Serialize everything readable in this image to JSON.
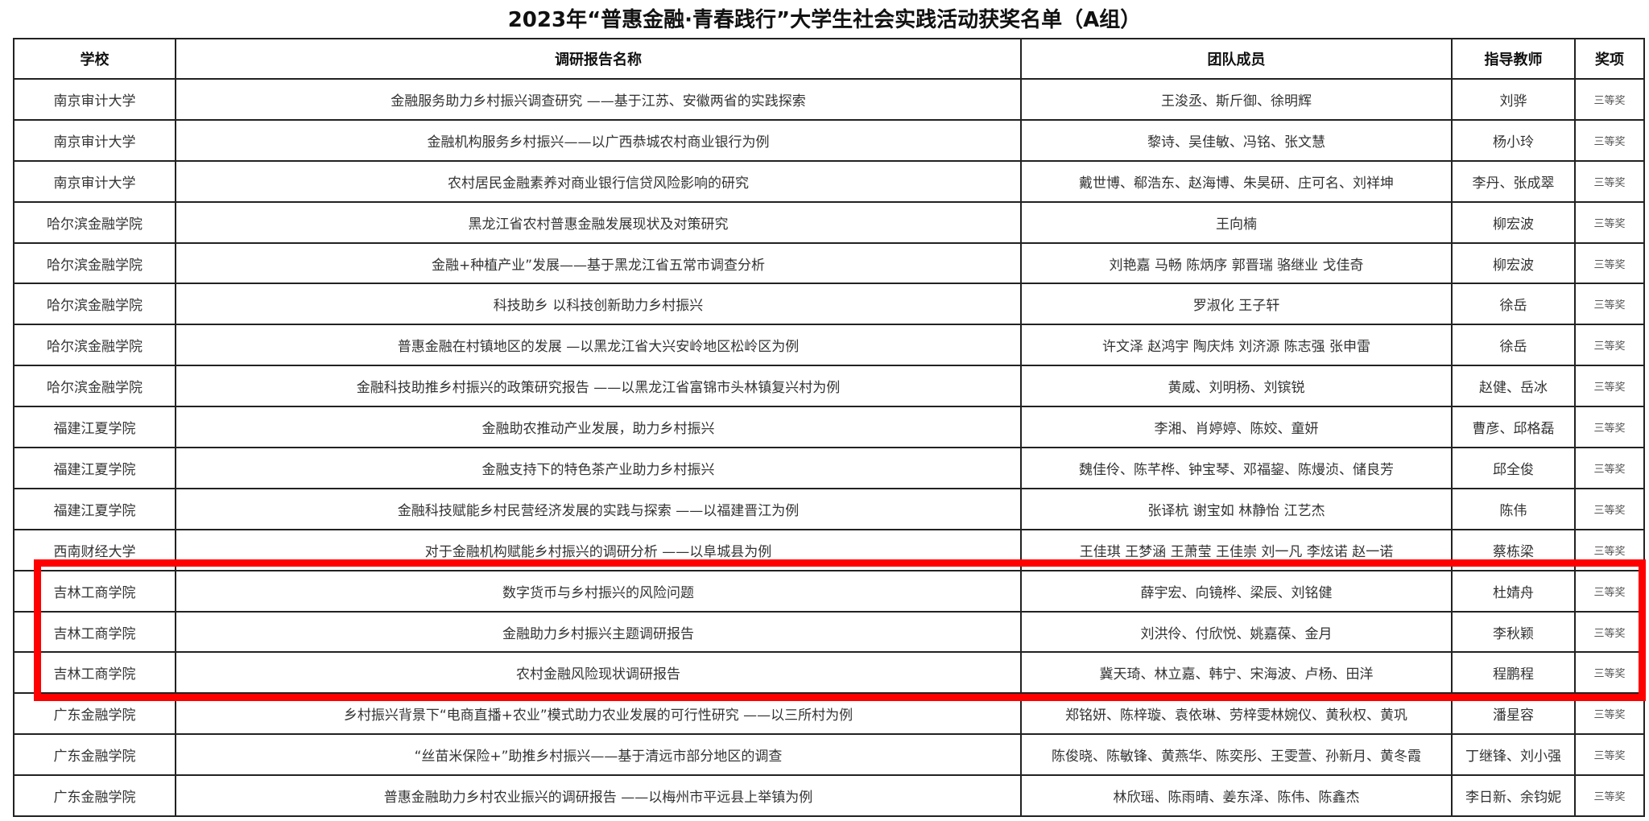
{
  "title": "2023年“普惠金融·青春践行”大学生社会实践活动获奖名单（A组）",
  "headers": [
    "学校",
    "调研报告名称",
    "团队成员",
    "指导教师",
    "奖项"
  ],
  "highlight_color": "#ff0000",
  "rows": [
    {
      "school": "南京审计大学",
      "report": "金融服务助力乡村振兴调查研究 ——基于江苏、安徽两省的实践探索",
      "members": "王浚丞、斯斤御、徐明辉",
      "advisor": "刘骅",
      "award": "三等奖"
    },
    {
      "school": "南京审计大学",
      "report": "金融机构服务乡村振兴——以广西恭城农村商业银行为例",
      "members": "黎诗、吴佳敏、冯铭、张文慧",
      "advisor": "杨小玲",
      "award": "三等奖"
    },
    {
      "school": "南京审计大学",
      "report": "农村居民金融素养对商业银行信贷风险影响的研究",
      "members": "戴世博、郗浩东、赵海博、朱昊研、庄可名、刘祥坤",
      "advisor": "李丹、张成翠",
      "award": "三等奖"
    },
    {
      "school": "哈尔滨金融学院",
      "report": "黑龙江省农村普惠金融发展现状及对策研究",
      "members": "王向楠",
      "advisor": "柳宏波",
      "award": "三等奖"
    },
    {
      "school": "哈尔滨金融学院",
      "report": "金融+种植产业”发展——基于黑龙江省五常市调查分析",
      "members": "刘艳嘉  马畅   陈炳序   郭晋瑞   骆继业  戈佳奇",
      "advisor": "柳宏波",
      "award": "三等奖"
    },
    {
      "school": "哈尔滨金融学院",
      "report": "科技助乡  以科技创新助力乡村振兴",
      "members": "罗淑化  王子轩",
      "advisor": "徐岳",
      "award": "三等奖"
    },
    {
      "school": "哈尔滨金融学院",
      "report": "普惠金融在村镇地区的发展 —以黑龙江省大兴安岭地区松岭区为例",
      "members": "许文泽  赵鸿宇  陶庆炜  刘济源  陈志强  张申雷",
      "advisor": "徐岳",
      "award": "三等奖"
    },
    {
      "school": "哈尔滨金融学院",
      "report": "金融科技助推乡村振兴的政策研究报告 ——以黑龙江省富锦市头林镇复兴村为例",
      "members": "黄威、刘明杨、刘镔锐",
      "advisor": "赵健、岳冰",
      "award": "三等奖"
    },
    {
      "school": "福建江夏学院",
      "report": "金融助农推动产业发展，助力乡村振兴",
      "members": "李湘、肖婷婷、陈姣、童妍",
      "advisor": "曹彦、邱格磊",
      "award": "三等奖"
    },
    {
      "school": "福建江夏学院",
      "report": "金融支持下的特色茶产业助力乡村振兴",
      "members": "魏佳伶、陈芊桦、钟宝琴、邓福鋆、陈熳浈、储良芳",
      "advisor": "邱全俊",
      "award": "三等奖"
    },
    {
      "school": "福建江夏学院",
      "report": "金融科技赋能乡村民营经济发展的实践与探索 ——以福建晋江为例",
      "members": "张译杭  谢宝如  林静怡  江艺杰",
      "advisor": "陈伟",
      "award": "三等奖"
    },
    {
      "school": "西南财经大学",
      "report": "对于金融机构赋能乡村振兴的调研分析 ——以阜城县为例",
      "members": "王佳琪  王梦涵  王萧莹  王佳崇  刘一凡  李炫诺  赵一诺",
      "advisor": "蔡栋梁",
      "award": "三等奖"
    },
    {
      "school": "吉林工商学院",
      "report": "数字货币与乡村振兴的风险问题",
      "members": "薛宇宏、向镜桦、梁辰、刘铭健",
      "advisor": "杜婧舟",
      "award": "三等奖"
    },
    {
      "school": "吉林工商学院",
      "report": "金融助力乡村振兴主题调研报告",
      "members": "刘洪伶、付欣悦、姚嘉葆、金月",
      "advisor": "李秋颖",
      "award": "三等奖"
    },
    {
      "school": "吉林工商学院",
      "report": "农村金融风险现状调研报告",
      "members": "冀天琦、林立嘉、韩宁、宋海波、卢杨、田洋",
      "advisor": "程鹏程",
      "award": "三等奖"
    },
    {
      "school": "广东金融学院",
      "report": "乡村振兴背景下“电商直播+农业”模式助力农业发展的可行性研究 ——以三所村为例",
      "members": "郑铭妍、陈梓璇、袁依琳、劳梓雯林婉仪、黄秋权、黄巩",
      "advisor": "潘星容",
      "award": "三等奖"
    },
    {
      "school": "广东金融学院",
      "report": "“丝苗米保险+”助推乡村振兴——基于清远市部分地区的调查",
      "members": "陈俊晓、陈敏锋、黄燕华、陈奕彤、王雯萱、孙新月、黄冬霞",
      "advisor": "丁继锋、刘小强",
      "award": "三等奖"
    },
    {
      "school": "广东金融学院",
      "report": "普惠金融助力乡村农业振兴的调研报告 ——以梅州市平远县上举镇为例",
      "members": "林欣瑶、陈雨晴、姜东泽、陈伟、陈鑫杰",
      "advisor": "李日新、余钧妮",
      "award": "三等奖"
    }
  ]
}
